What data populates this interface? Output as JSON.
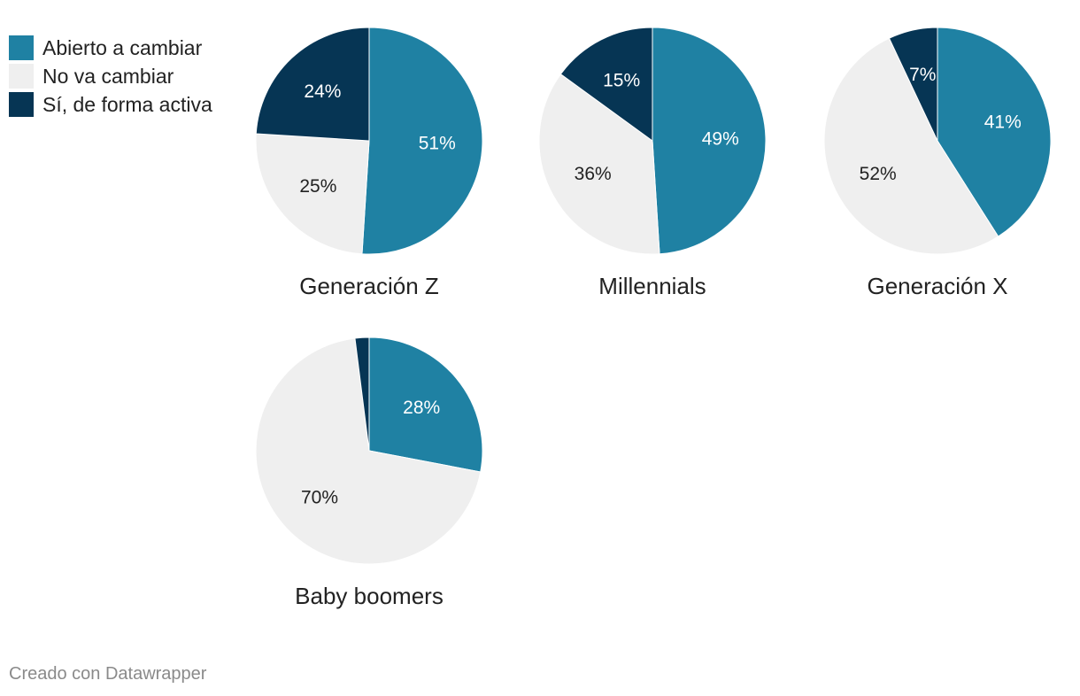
{
  "chart_data": {
    "type": "pie",
    "legend": {
      "placement": "top-left",
      "items": [
        {
          "label": "Abierto a cambiar",
          "color": "#1f81a3"
        },
        {
          "label": "No va cambiar",
          "color": "#efefef"
        },
        {
          "label": "Sí, de forma activa",
          "color": "#063554"
        }
      ]
    },
    "charts": [
      {
        "title": "Generación Z",
        "slices": [
          {
            "label": "Abierto a cambiar",
            "value": 51,
            "text": "51%"
          },
          {
            "label": "No va cambiar",
            "value": 25,
            "text": "25%"
          },
          {
            "label": "Sí, de forma activa",
            "value": 24,
            "text": "24%"
          }
        ]
      },
      {
        "title": "Millennials",
        "slices": [
          {
            "label": "Abierto a cambiar",
            "value": 49,
            "text": "49%"
          },
          {
            "label": "No va cambiar",
            "value": 36,
            "text": "36%"
          },
          {
            "label": "Sí, de forma activa",
            "value": 15,
            "text": "15%"
          }
        ]
      },
      {
        "title": "Generación X",
        "slices": [
          {
            "label": "Abierto a cambiar",
            "value": 41,
            "text": "41%"
          },
          {
            "label": "No va cambiar",
            "value": 52,
            "text": "52%"
          },
          {
            "label": "Sí, de forma activa",
            "value": 7,
            "text": "7%"
          }
        ]
      },
      {
        "title": "Baby boomers",
        "slices": [
          {
            "label": "Abierto a cambiar",
            "value": 28,
            "text": "28%"
          },
          {
            "label": "No va cambiar",
            "value": 70,
            "text": "70%"
          },
          {
            "label": "Sí, de forma activa",
            "value": 2,
            "text": ""
          }
        ]
      }
    ]
  },
  "footer": "Creado con Datawrapper"
}
